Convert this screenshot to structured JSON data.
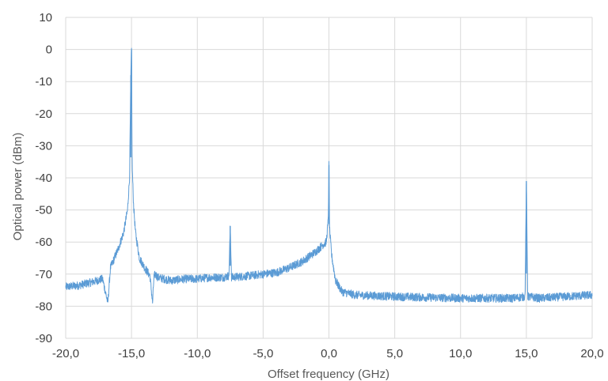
{
  "chart_data": {
    "type": "line",
    "xlabel": "Offset frequency (GHz)",
    "ylabel": "Optical power (dBm)",
    "xlim": [
      -20,
      20
    ],
    "ylim": [
      -90,
      10
    ],
    "x_ticks": [
      -20,
      -15,
      -10,
      -5,
      0,
      5,
      10,
      15,
      20
    ],
    "y_ticks": [
      -90,
      -80,
      -70,
      -60,
      -50,
      -40,
      -30,
      -20,
      -10,
      0,
      10
    ],
    "x_tick_labels": [
      "-20,0",
      "-15,0",
      "-10,0",
      "-5,0",
      "0,0",
      "5,0",
      "10,0",
      "15,0",
      "20,0"
    ],
    "y_tick_labels": [
      "-90",
      "-80",
      "-70",
      "-60",
      "-50",
      "-40",
      "-30",
      "-20",
      "-10",
      "0",
      "10"
    ],
    "grid": true,
    "legend": "none",
    "line_color": "#5b9bd5",
    "grid_color": "#d9d9d9",
    "series": [
      {
        "x": [
          -20,
          -19,
          -18,
          -17.2,
          -16.8,
          -16.6,
          -16.4,
          -16.0,
          -15.6,
          -15.3,
          -15.15,
          -15.05,
          -15.0,
          -14.95,
          -14.85,
          -14.7,
          -14.4,
          -14.0,
          -13.6,
          -13.4,
          -13.3,
          -13.2,
          -13.0,
          -12.0,
          -11.0,
          -10.0,
          -9.0,
          -8.0,
          -7.6,
          -7.5,
          -7.4,
          -6.0,
          -5.0,
          -4.0,
          -3.0,
          -2.0,
          -1.0,
          -0.5,
          -0.2,
          -0.05,
          0.0,
          0.05,
          0.2,
          0.5,
          1.0,
          2.0,
          5.0,
          10.0,
          14.0,
          14.9,
          15.0,
          15.1,
          16.0,
          18.0,
          20.0
        ],
        "y": [
          -74,
          -73.5,
          -72.5,
          -71.5,
          -79,
          -68,
          -66,
          -62,
          -57,
          -50,
          -40,
          -8,
          0,
          -36,
          -48,
          -57,
          -65,
          -68,
          -70.5,
          -79,
          -71,
          -70,
          -71,
          -72,
          -71.5,
          -71.5,
          -71,
          -71,
          -70.5,
          -55,
          -71,
          -70.5,
          -70,
          -69.5,
          -68,
          -66,
          -63,
          -61,
          -60,
          -53,
          -36,
          -56,
          -64,
          -72,
          -75.5,
          -76.5,
          -77,
          -77.5,
          -77.5,
          -77,
          -41,
          -77,
          -77.5,
          -77,
          -76.5
        ]
      }
    ]
  }
}
